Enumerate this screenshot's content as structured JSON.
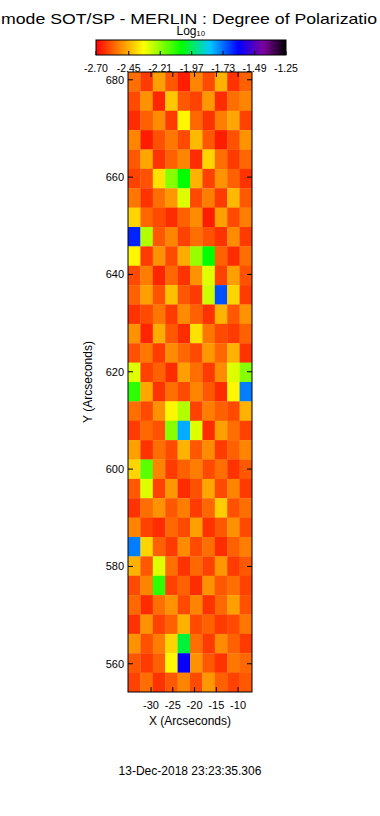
{
  "chart_data": {
    "type": "heatmap",
    "title": "mode SOT/SP - MERLIN : Degree of Polarizatio",
    "xlabel": "X (Arcseconds)",
    "ylabel": "Y (Arcseconds)",
    "annotation": "13-Dec-2018 23:23:35.306",
    "colorbar_label": "Log₁₀",
    "colorbar_range": [
      -2.7,
      -1.25
    ],
    "colorbar_ticks": [
      {
        "value": -2.7,
        "label": "-2.70"
      },
      -2.45,
      -2.21,
      -1.97,
      -1.73,
      -1.49,
      -1.25
    ],
    "xlim": [
      -35.3,
      -6.8
    ],
    "ylim": [
      554.2,
      681.6
    ],
    "xticks": [
      -30,
      -25,
      -20,
      -15,
      -10
    ],
    "yticks": [
      560,
      580,
      600,
      620,
      640,
      660,
      680
    ],
    "cells": [
      [
        -2.55,
        -2.62,
        -2.48,
        -2.58,
        -2.66,
        -2.52,
        -2.6,
        -2.45,
        -2.63,
        -2.57
      ],
      [
        -2.6,
        -2.5,
        -2.65,
        -2.42,
        -2.58,
        -2.61,
        -2.49,
        -2.64,
        -2.55,
        -2.52
      ],
      [
        -2.64,
        -2.57,
        -2.51,
        -2.62,
        -2.35,
        -2.56,
        -2.63,
        -2.53,
        -2.47,
        -2.61
      ],
      [
        -2.52,
        -2.66,
        -2.59,
        -2.54,
        -2.6,
        -2.44,
        -2.58,
        -2.66,
        -2.59,
        -2.5
      ],
      [
        -2.58,
        -2.47,
        -2.63,
        -2.57,
        -2.52,
        -2.64,
        -2.4,
        -2.55,
        -2.62,
        -2.56
      ],
      [
        -2.61,
        -2.59,
        -2.38,
        -2.2,
        -2.05,
        -2.45,
        -2.61,
        -2.5,
        -2.57,
        -2.63
      ],
      [
        -2.54,
        -2.63,
        -2.55,
        -2.49,
        -2.3,
        -2.6,
        -2.53,
        -2.62,
        -2.44,
        -2.58
      ],
      [
        -2.4,
        -2.56,
        -2.6,
        -2.64,
        -2.57,
        -2.51,
        -2.66,
        -2.48,
        -2.6,
        -2.53
      ],
      [
        -1.65,
        -2.25,
        -2.58,
        -2.52,
        -2.61,
        -2.55,
        -2.59,
        -2.63,
        -2.51,
        -2.62
      ],
      [
        -2.35,
        -2.62,
        -2.5,
        -2.6,
        -2.46,
        -2.22,
        -2.05,
        -2.57,
        -2.64,
        -2.55
      ],
      [
        -2.6,
        -2.53,
        -2.65,
        -2.56,
        -2.63,
        -2.5,
        -2.3,
        -2.61,
        -2.48,
        -2.59
      ],
      [
        -2.57,
        -2.48,
        -2.59,
        -2.43,
        -2.58,
        -2.62,
        -2.28,
        -1.7,
        -2.4,
        -2.62
      ],
      [
        -2.63,
        -2.6,
        -2.54,
        -2.62,
        -2.51,
        -2.57,
        -2.63,
        -2.45,
        -2.58,
        -2.5
      ],
      [
        -2.5,
        -2.65,
        -2.46,
        -2.58,
        -2.64,
        -2.38,
        -2.54,
        -2.6,
        -2.62,
        -2.57
      ],
      [
        -2.59,
        -2.54,
        -2.62,
        -2.51,
        -2.56,
        -2.6,
        -2.49,
        -2.56,
        -2.45,
        -2.63
      ],
      [
        -2.3,
        -2.61,
        -2.57,
        -2.64,
        -2.48,
        -2.55,
        -2.62,
        -2.51,
        -2.3,
        -2.2
      ],
      [
        -2.1,
        -2.47,
        -2.63,
        -2.55,
        -2.6,
        -2.52,
        -2.58,
        -2.64,
        -2.35,
        -1.75
      ],
      [
        -2.55,
        -2.6,
        -2.5,
        -2.35,
        -2.25,
        -2.61,
        -2.53,
        -2.57,
        -2.6,
        -2.45
      ],
      [
        -2.62,
        -2.56,
        -2.59,
        -2.2,
        -1.8,
        -2.3,
        -2.64,
        -2.48,
        -2.55,
        -2.61
      ],
      [
        -2.48,
        -2.63,
        -2.55,
        -2.6,
        -2.45,
        -2.58,
        -2.51,
        -2.62,
        -2.57,
        -2.52
      ],
      [
        -2.4,
        -2.15,
        -2.52,
        -2.62,
        -2.57,
        -2.53,
        -2.6,
        -2.55,
        -2.63,
        -2.58
      ],
      [
        -2.58,
        -2.3,
        -2.61,
        -2.49,
        -2.64,
        -2.59,
        -2.47,
        -2.6,
        -2.52,
        -2.62
      ],
      [
        -2.63,
        -2.55,
        -2.5,
        -2.58,
        -2.53,
        -2.62,
        -2.56,
        -2.41,
        -2.59,
        -2.55
      ],
      [
        -2.52,
        -2.61,
        -2.64,
        -2.56,
        -2.6,
        -2.48,
        -2.63,
        -2.58,
        -2.5,
        -2.6
      ],
      [
        -1.75,
        -2.4,
        -2.57,
        -2.62,
        -2.51,
        -2.6,
        -2.55,
        -2.64,
        -2.57,
        -2.53
      ],
      [
        -2.45,
        -2.58,
        -2.3,
        -2.55,
        -2.63,
        -2.56,
        -2.61,
        -2.49,
        -2.62,
        -2.58
      ],
      [
        -2.6,
        -2.52,
        -2.1,
        -2.61,
        -2.57,
        -2.64,
        -2.5,
        -2.58,
        -2.55,
        -2.61
      ],
      [
        -2.56,
        -2.64,
        -2.55,
        -2.5,
        -2.6,
        -2.52,
        -2.63,
        -2.56,
        -2.48,
        -2.59
      ],
      [
        -2.63,
        -2.5,
        -2.61,
        -2.57,
        -2.45,
        -2.6,
        -2.57,
        -2.62,
        -2.6,
        -2.54
      ],
      [
        -2.5,
        -2.59,
        -2.53,
        -2.4,
        -2.0,
        -2.55,
        -2.62,
        -2.51,
        -2.57,
        -2.62
      ],
      [
        -2.58,
        -2.62,
        -2.57,
        -2.35,
        -1.6,
        -2.5,
        -2.58,
        -2.63,
        -2.54,
        -2.56
      ],
      [
        -2.61,
        -2.55,
        -2.63,
        -2.58,
        -2.52,
        -2.6,
        -2.49,
        -2.57,
        -2.61,
        -2.58
      ]
    ]
  }
}
